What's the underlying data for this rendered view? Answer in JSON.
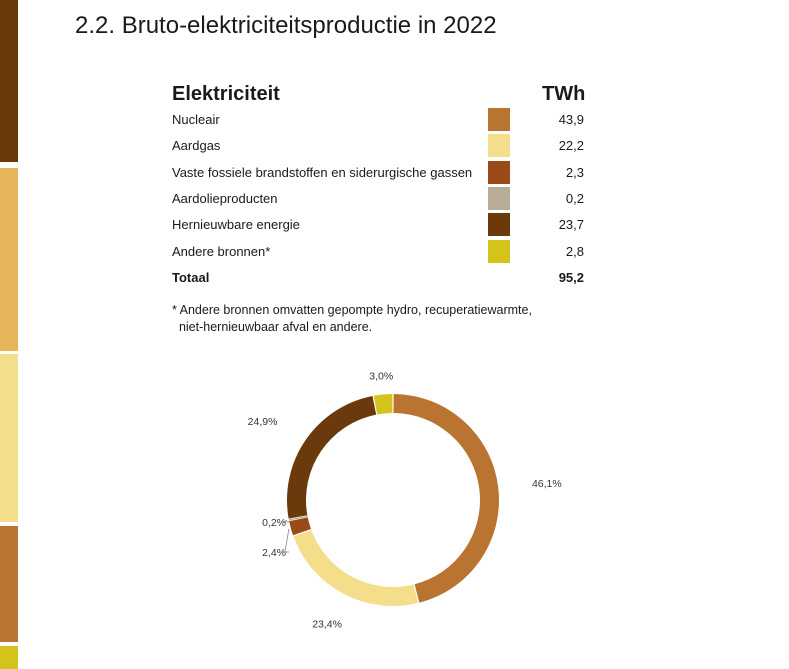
{
  "title": "2.2. Bruto-elektriciteitsproductie in 2022",
  "table": {
    "header_label": "Elektriciteit",
    "header_unit": "TWh",
    "rows": [
      {
        "label": "Nucleair",
        "value": "43,9",
        "color": "#b87430"
      },
      {
        "label": "Aardgas",
        "value": "22,2",
        "color": "#f5de8b"
      },
      {
        "label": "Vaste fossiele brandstoffen en siderurgische gassen",
        "value": "2,3",
        "color": "#9b4a1a"
      },
      {
        "label": "Aardolieproducten",
        "value": "0,2",
        "color": "#b9ac97"
      },
      {
        "label": "Hernieuwbare energie",
        "value": "23,7",
        "color": "#6b3a0c"
      },
      {
        "label": "Andere bronnen*",
        "value": "2,8",
        "color": "#d4c31a"
      }
    ],
    "total_label": "Totaal",
    "total_value": "95,2"
  },
  "footnote": "* Andere bronnen omvatten gepompte hydro, recuperatiewarmte,\n  niet-hernieuwbaar afval en andere.",
  "chart_data": {
    "type": "pie",
    "style": "donut",
    "categories": [
      "Nucleair",
      "Aardgas",
      "Vaste fossiele brandstoffen en siderurgische gassen",
      "Aardolieproducten",
      "Hernieuwbare energie",
      "Andere bronnen*"
    ],
    "values": [
      46.1,
      23.4,
      2.4,
      0.2,
      24.9,
      3.0
    ],
    "labels": [
      "46,1%",
      "23,4%",
      "2,4%",
      "0,2%",
      "24,9%",
      "3,0%"
    ],
    "colors": [
      "#b87430",
      "#f5de8b",
      "#9b4a1a",
      "#b9ac97",
      "#6b3a0c",
      "#d4c31a"
    ]
  }
}
